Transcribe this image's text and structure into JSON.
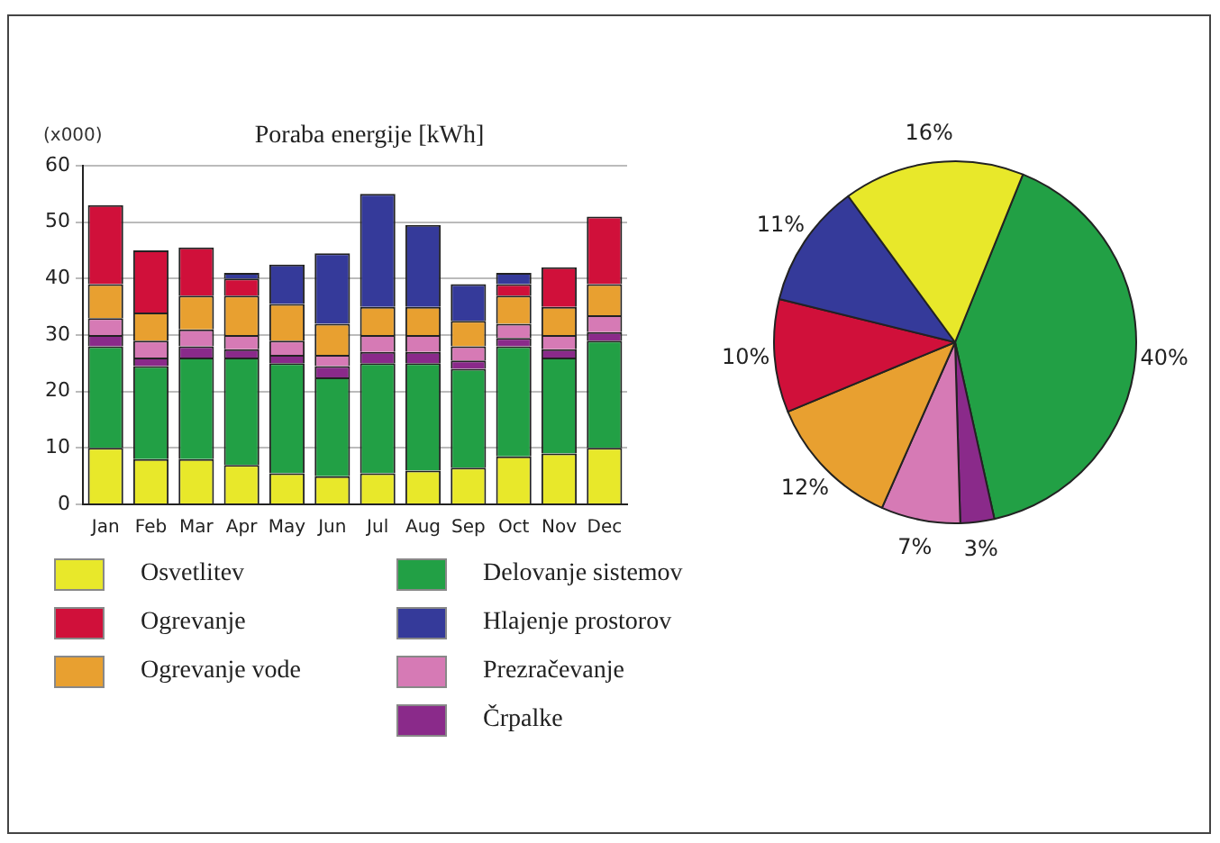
{
  "chart_data": [
    {
      "type": "bar",
      "title": "Poraba energije [kWh]",
      "ylabel": "(x000)",
      "stacked": true,
      "grid": "y",
      "legend": "bottom",
      "categories": [
        "Jan",
        "Feb",
        "Mar",
        "Apr",
        "May",
        "Jun",
        "Jul",
        "Aug",
        "Sep",
        "Oct",
        "Nov",
        "Dec"
      ],
      "ylim": [
        0,
        60
      ],
      "yticks": [
        0,
        10,
        20,
        30,
        40,
        50,
        60
      ],
      "series": [
        {
          "name": "Osvetlitev",
          "color": "#e8e82a",
          "values": [
            10,
            8,
            8,
            7,
            5.5,
            5,
            5.5,
            6,
            6.5,
            8.5,
            9,
            10
          ]
        },
        {
          "name": "Delovanje sistemov",
          "color": "#22a045",
          "values": [
            18,
            16.5,
            18,
            19,
            19.5,
            17.5,
            19.5,
            19,
            17.5,
            19.5,
            17,
            19
          ]
        },
        {
          "name": "Črpalke",
          "color": "#8a2a8a",
          "values": [
            2,
            1.5,
            2,
            1.5,
            1.5,
            2,
            2,
            2,
            1.5,
            1.5,
            1.5,
            1.5
          ]
        },
        {
          "name": "Prezračevanje",
          "color": "#d67ab5",
          "values": [
            3,
            3,
            3,
            2.5,
            2.5,
            2,
            3,
            3,
            2.5,
            2.5,
            2.5,
            3
          ]
        },
        {
          "name": "Ogrevanje vode",
          "color": "#e8a030",
          "values": [
            6,
            5,
            6,
            7,
            6.5,
            5.5,
            5,
            5,
            4.5,
            5,
            5,
            5.5
          ]
        },
        {
          "name": "Ogrevanje",
          "color": "#d0103a",
          "values": [
            14,
            11,
            8.5,
            3,
            0,
            0,
            0,
            0,
            0,
            2,
            7,
            12
          ]
        },
        {
          "name": "Hlajenje prostorov",
          "color": "#353a9a",
          "values": [
            0,
            0,
            0,
            1,
            7,
            12.5,
            20,
            14.5,
            6.5,
            2,
            0,
            0
          ]
        }
      ]
    },
    {
      "type": "pie",
      "categories": [
        null,
        null,
        null,
        null,
        null,
        null,
        null
      ],
      "values": [
        40,
        3,
        7,
        12,
        10,
        11,
        16
      ],
      "colors": [
        "#22a045",
        "#8a2a8a",
        "#d67ab5",
        "#e8a030",
        "#d0103a",
        "#353a9a",
        "#e8e82a"
      ],
      "value_labels": [
        "40%",
        "3%",
        "7%",
        "12%",
        "10%",
        "11%",
        "16%"
      ]
    }
  ]
}
